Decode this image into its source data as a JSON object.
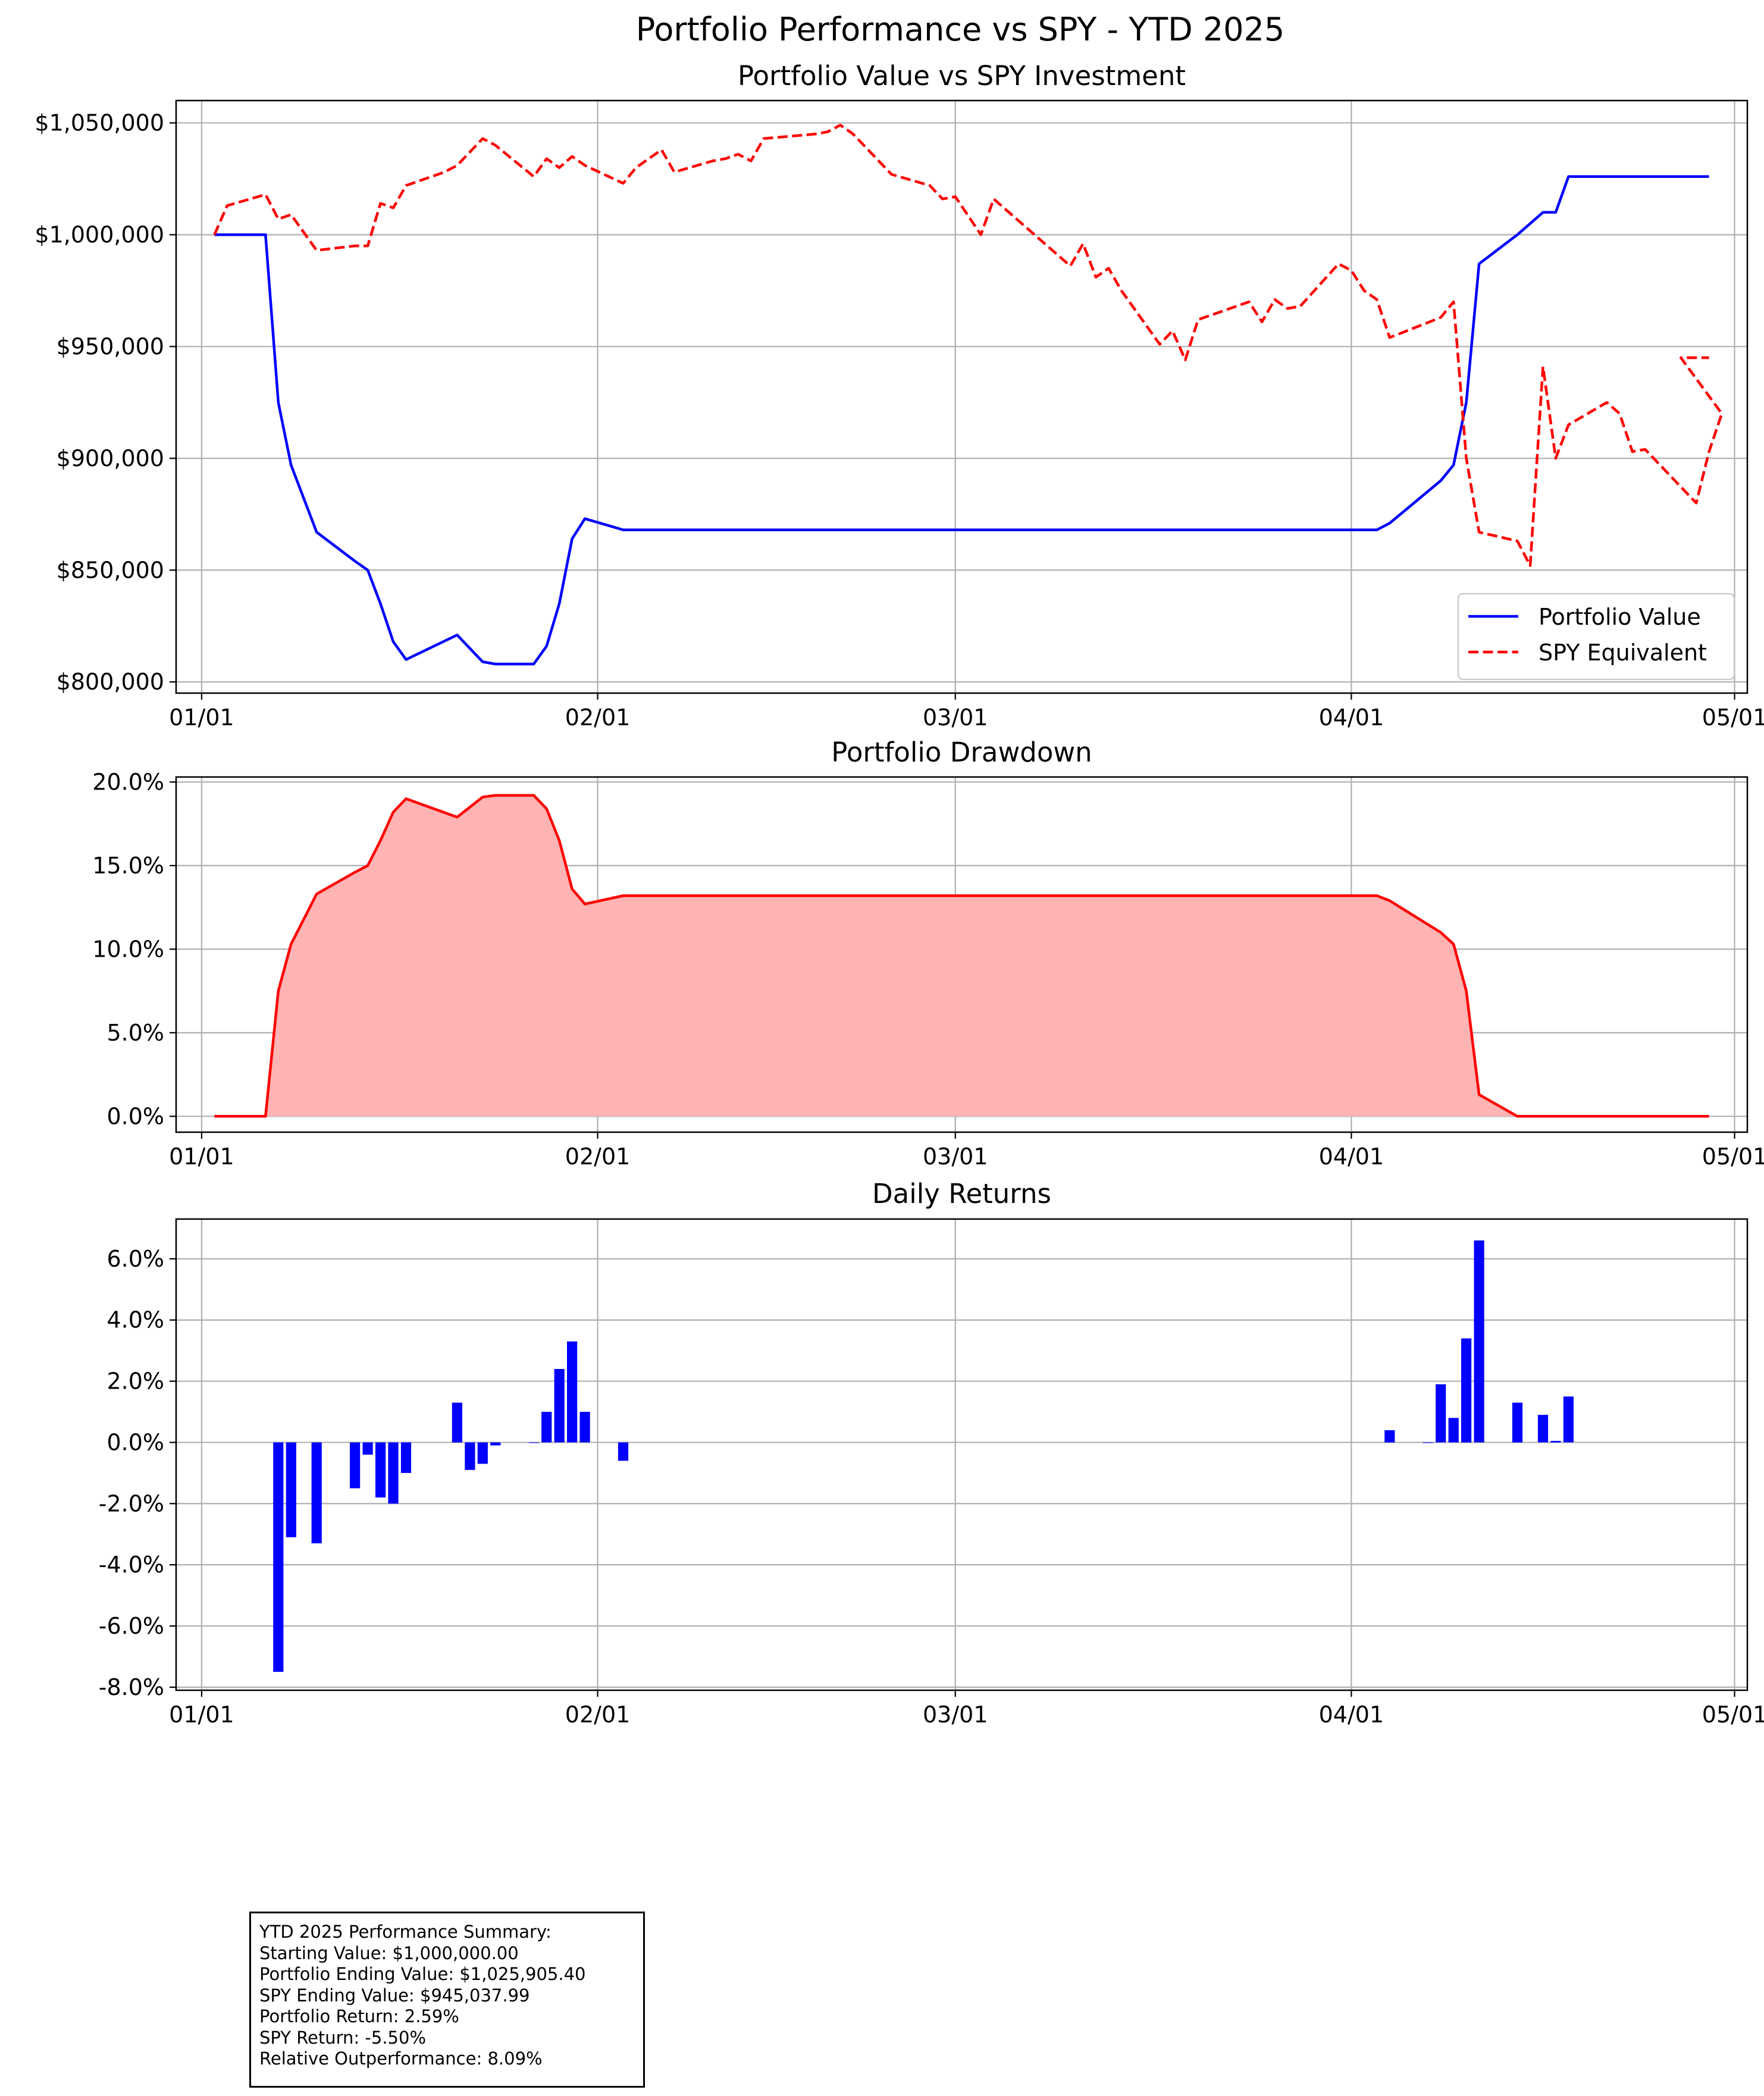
{
  "figure": {
    "title": "Portfolio Performance vs SPY - YTD 2025"
  },
  "date_ticks": [
    "01/01",
    "02/01",
    "03/01",
    "04/01",
    "05/01"
  ],
  "colors": {
    "portfolio": "#0000ff",
    "spy": "#ff0000",
    "drawdown_fill": "#ffb3b3",
    "grid": "#b0b0b0"
  },
  "summary": {
    "heading": "YTD 2025 Performance Summary:",
    "lines": [
      "Starting Value: $1,000,000.00",
      "Portfolio Ending Value: $1,025,905.40",
      "SPY Ending Value: $945,037.99",
      "Portfolio Return: 2.59%",
      "SPY Return: -5.50%",
      "Relative Outperformance: 8.09%"
    ]
  },
  "chart_data": [
    {
      "type": "line",
      "title": "Portfolio Value vs SPY Investment",
      "xlabel": "",
      "ylabel": "",
      "xlim": [
        "2024-12-30",
        "2025-05-02"
      ],
      "ylim": [
        795000,
        1060000
      ],
      "yticks": [
        800000,
        850000,
        900000,
        950000,
        1000000,
        1050000
      ],
      "ytick_labels": [
        "$800,000",
        "$850,000",
        "$900,000",
        "$950,000",
        "$1,000,000",
        "$1,050,000"
      ],
      "grid": true,
      "legend": "lower-right",
      "series": [
        {
          "name": "Portfolio Value",
          "style": "solid",
          "color": "#0000ff",
          "points": [
            [
              "2025-01-02",
              1000000
            ],
            [
              "2025-01-06",
              1000000
            ],
            [
              "2025-01-07",
              925000
            ],
            [
              "2025-01-08",
              897000
            ],
            [
              "2025-01-10",
              867000
            ],
            [
              "2025-01-13",
              854000
            ],
            [
              "2025-01-14",
              850000
            ],
            [
              "2025-01-15",
              835000
            ],
            [
              "2025-01-16",
              818000
            ],
            [
              "2025-01-17",
              810000
            ],
            [
              "2025-01-21",
              821000
            ],
            [
              "2025-01-22",
              815000
            ],
            [
              "2025-01-23",
              809000
            ],
            [
              "2025-01-24",
              808000
            ],
            [
              "2025-01-27",
              808000
            ],
            [
              "2025-01-28",
              816000
            ],
            [
              "2025-01-29",
              835000
            ],
            [
              "2025-01-30",
              864000
            ],
            [
              "2025-01-31",
              873000
            ],
            [
              "2025-02-03",
              868000
            ],
            [
              "2025-04-03",
              868000
            ],
            [
              "2025-04-04",
              871000
            ],
            [
              "2025-04-08",
              890000
            ],
            [
              "2025-04-09",
              897000
            ],
            [
              "2025-04-10",
              925000
            ],
            [
              "2025-04-11",
              987000
            ],
            [
              "2025-04-14",
              1000000
            ],
            [
              "2025-04-16",
              1010000
            ],
            [
              "2025-04-17",
              1010000
            ],
            [
              "2025-04-18",
              1026000
            ],
            [
              "2025-04-29",
              1026000
            ]
          ]
        },
        {
          "name": "SPY Equivalent",
          "style": "dashed",
          "color": "#ff0000",
          "points": [
            [
              "2025-01-02",
              1000000
            ],
            [
              "2025-01-03",
              1013000
            ],
            [
              "2025-01-06",
              1018000
            ],
            [
              "2025-01-07",
              1007000
            ],
            [
              "2025-01-08",
              1009000
            ],
            [
              "2025-01-10",
              993000
            ],
            [
              "2025-01-13",
              995000
            ],
            [
              "2025-01-14",
              995000
            ],
            [
              "2025-01-15",
              1014000
            ],
            [
              "2025-01-16",
              1012000
            ],
            [
              "2025-01-17",
              1022000
            ],
            [
              "2025-01-20",
              1028000
            ],
            [
              "2025-01-21",
              1031000
            ],
            [
              "2025-01-23",
              1043000
            ],
            [
              "2025-01-24",
              1040000
            ],
            [
              "2025-01-27",
              1026000
            ],
            [
              "2025-01-28",
              1034000
            ],
            [
              "2025-01-29",
              1030000
            ],
            [
              "2025-01-30",
              1035000
            ],
            [
              "2025-01-31",
              1031000
            ],
            [
              "2025-02-03",
              1023000
            ],
            [
              "2025-02-04",
              1030000
            ],
            [
              "2025-02-06",
              1038000
            ],
            [
              "2025-02-07",
              1028000
            ],
            [
              "2025-02-10",
              1033000
            ],
            [
              "2025-02-11",
              1034000
            ],
            [
              "2025-02-12",
              1036000
            ],
            [
              "2025-02-13",
              1033000
            ],
            [
              "2025-02-14",
              1043000
            ],
            [
              "2025-02-18",
              1045000
            ],
            [
              "2025-02-19",
              1046000
            ],
            [
              "2025-02-20",
              1049000
            ],
            [
              "2025-02-21",
              1045000
            ],
            [
              "2025-02-24",
              1027000
            ],
            [
              "2025-02-27",
              1022000
            ],
            [
              "2025-02-28",
              1016000
            ],
            [
              "2025-03-01",
              1017000
            ],
            [
              "2025-03-03",
              1000000
            ],
            [
              "2025-03-04",
              1016000
            ],
            [
              "2025-03-07",
              1001000
            ],
            [
              "2025-03-10",
              986000
            ],
            [
              "2025-03-11",
              996000
            ],
            [
              "2025-03-12",
              981000
            ],
            [
              "2025-03-13",
              985000
            ],
            [
              "2025-03-14",
              975000
            ],
            [
              "2025-03-17",
              951000
            ],
            [
              "2025-03-18",
              957000
            ],
            [
              "2025-03-19",
              944000
            ],
            [
              "2025-03-20",
              962000
            ],
            [
              "2025-03-24",
              970000
            ],
            [
              "2025-03-25",
              961000
            ],
            [
              "2025-03-26",
              971000
            ],
            [
              "2025-03-27",
              967000
            ],
            [
              "2025-03-28",
              968000
            ],
            [
              "2025-03-31",
              987000
            ],
            [
              "2025-04-01",
              984000
            ],
            [
              "2025-04-02",
              975000
            ],
            [
              "2025-04-03",
              971000
            ],
            [
              "2025-04-04",
              954000
            ],
            [
              "2025-04-08",
              963000
            ],
            [
              "2025-04-09",
              970000
            ],
            [
              "2025-04-10",
              900000
            ],
            [
              "2025-04-11",
              867000
            ],
            [
              "2025-04-14",
              863000
            ],
            [
              "2025-04-15",
              852000
            ],
            [
              "2025-04-16",
              941000
            ],
            [
              "2025-04-17",
              900000
            ],
            [
              "2025-04-18",
              915000
            ],
            [
              "2025-04-21",
              925000
            ],
            [
              "2025-04-22",
              920000
            ],
            [
              "2025-04-23",
              903000
            ],
            [
              "2025-04-24",
              904000
            ],
            [
              "2025-04-28",
              880000
            ],
            [
              "2025-04-29",
              903000
            ],
            [
              "2025-04-30",
              920000
            ],
            [
              "2025-05-01",
              945000
            ],
            [
              "2025-04-29b",
              945000
            ]
          ]
        }
      ]
    },
    {
      "type": "area",
      "title": "Portfolio Drawdown",
      "xlabel": "",
      "ylabel": "",
      "xlim": [
        "2024-12-30",
        "2025-05-02"
      ],
      "ylim": [
        -0.95,
        20.3
      ],
      "yticks": [
        0,
        5,
        10,
        15,
        20
      ],
      "ytick_labels": [
        "0.0%",
        "5.0%",
        "10.0%",
        "15.0%",
        "20.0%"
      ],
      "grid": true,
      "series": [
        {
          "name": "",
          "color": "#ff0000",
          "points": [
            [
              "2025-01-02",
              0
            ],
            [
              "2025-01-06",
              0
            ],
            [
              "2025-01-07",
              7.5
            ],
            [
              "2025-01-08",
              10.3
            ],
            [
              "2025-01-10",
              13.3
            ],
            [
              "2025-01-13",
              14.6
            ],
            [
              "2025-01-14",
              15.0
            ],
            [
              "2025-01-15",
              16.5
            ],
            [
              "2025-01-16",
              18.2
            ],
            [
              "2025-01-17",
              19.0
            ],
            [
              "2025-01-21",
              17.9
            ],
            [
              "2025-01-22",
              18.5
            ],
            [
              "2025-01-23",
              19.1
            ],
            [
              "2025-01-24",
              19.2
            ],
            [
              "2025-01-27",
              19.2
            ],
            [
              "2025-01-28",
              18.4
            ],
            [
              "2025-01-29",
              16.5
            ],
            [
              "2025-01-30",
              13.6
            ],
            [
              "2025-01-31",
              12.7
            ],
            [
              "2025-02-03",
              13.2
            ],
            [
              "2025-04-03",
              13.2
            ],
            [
              "2025-04-04",
              12.9
            ],
            [
              "2025-04-08",
              11.0
            ],
            [
              "2025-04-09",
              10.3
            ],
            [
              "2025-04-10",
              7.5
            ],
            [
              "2025-04-11",
              1.3
            ],
            [
              "2025-04-14",
              0
            ],
            [
              "2025-04-29",
              0
            ]
          ]
        }
      ]
    },
    {
      "type": "bar",
      "title": "Daily Returns",
      "xlabel": "",
      "ylabel": "",
      "xlim": [
        "2024-12-30",
        "2025-05-02"
      ],
      "ylim": [
        -8.1,
        7.3
      ],
      "yticks": [
        -8,
        -6,
        -4,
        -2,
        0,
        2,
        4,
        6
      ],
      "ytick_labels": [
        "-8.0%",
        "-6.0%",
        "-4.0%",
        "-2.0%",
        "0.0%",
        "2.0%",
        "4.0%",
        "6.0%"
      ],
      "grid": true,
      "color": "#0000ff",
      "bars": [
        [
          "2025-01-07",
          -7.5
        ],
        [
          "2025-01-08",
          -3.1
        ],
        [
          "2025-01-10",
          -3.3
        ],
        [
          "2025-01-13",
          -1.5
        ],
        [
          "2025-01-14",
          -0.4
        ],
        [
          "2025-01-15",
          -1.8
        ],
        [
          "2025-01-16",
          -2.0
        ],
        [
          "2025-01-17",
          -1.0
        ],
        [
          "2025-01-21",
          1.3
        ],
        [
          "2025-01-22",
          -0.9
        ],
        [
          "2025-01-23",
          -0.7
        ],
        [
          "2025-01-24",
          -0.1
        ],
        [
          "2025-01-27",
          0.0
        ],
        [
          "2025-01-28",
          1.0
        ],
        [
          "2025-01-29",
          2.4
        ],
        [
          "2025-01-30",
          3.3
        ],
        [
          "2025-01-31",
          1.0
        ],
        [
          "2025-02-03",
          -0.6
        ],
        [
          "2025-04-04",
          0.4
        ],
        [
          "2025-04-07",
          0.0
        ],
        [
          "2025-04-08",
          1.9
        ],
        [
          "2025-04-09",
          0.8
        ],
        [
          "2025-04-10",
          3.4
        ],
        [
          "2025-04-11",
          6.6
        ],
        [
          "2025-04-14",
          1.3
        ],
        [
          "2025-04-16",
          0.9
        ],
        [
          "2025-04-17",
          0.05
        ],
        [
          "2025-04-18",
          1.5
        ]
      ]
    }
  ]
}
